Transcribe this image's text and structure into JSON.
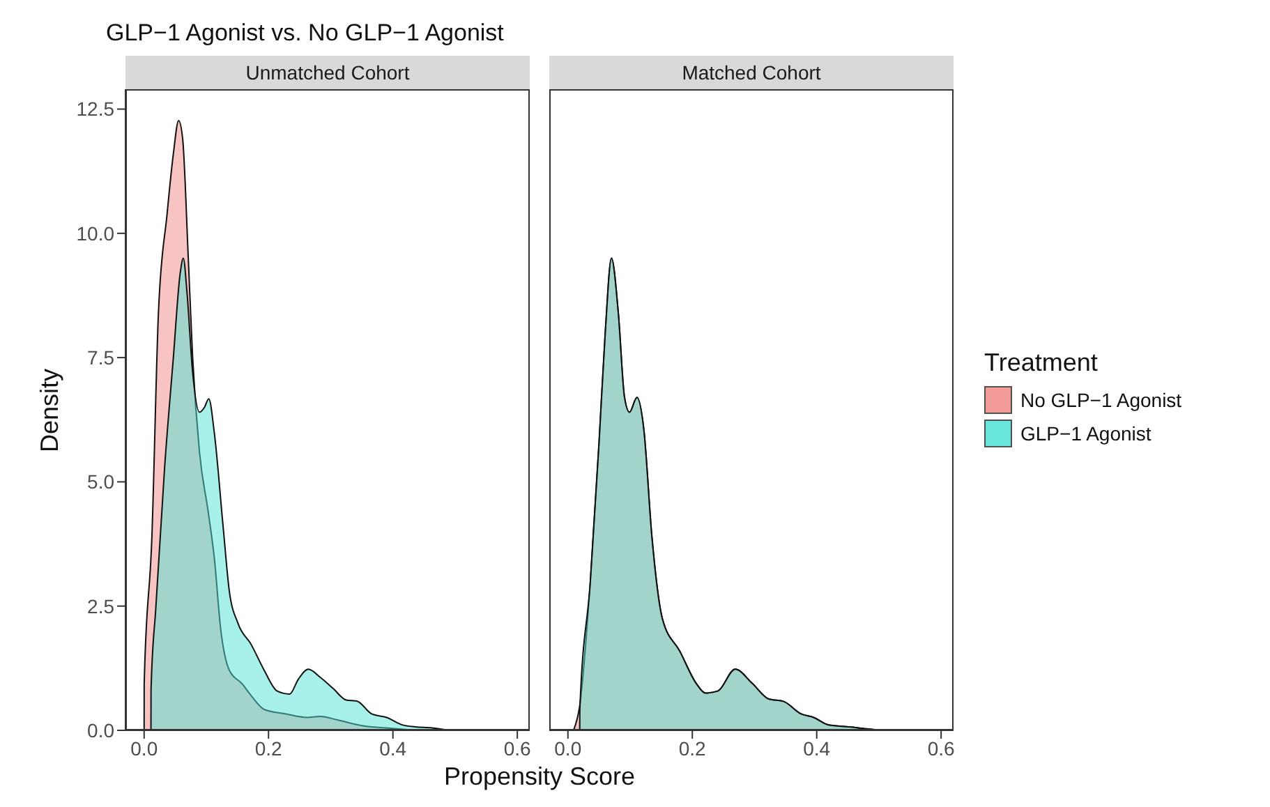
{
  "chart_data": [
    {
      "type": "area",
      "title": "GLP−1 Agonist vs. No GLP−1 Agonist",
      "subtitle": "Unmatched Cohort",
      "xlabel": "Propensity Score",
      "ylabel": "Density",
      "xlim": [
        -0.03,
        0.62
      ],
      "ylim": [
        0,
        12.9
      ],
      "xticks": [
        {
          "value": 0,
          "label": "0.0"
        },
        {
          "value": 0.2,
          "label": "0.2"
        },
        {
          "value": 0.4,
          "label": "0.4"
        },
        {
          "value": 0.6,
          "label": "0.6"
        }
      ],
      "yticks": [
        {
          "value": 0,
          "label": "0.0"
        },
        {
          "value": 2.5,
          "label": "2.5"
        },
        {
          "value": 5,
          "label": "5.0"
        },
        {
          "value": 7.5,
          "label": "7.5"
        },
        {
          "value": 10,
          "label": "10.0"
        },
        {
          "value": 12.5,
          "label": "12.5"
        }
      ],
      "grid": false,
      "legend": false,
      "series": [
        {
          "color": "#f08a88",
          "x": [
            0.0,
            0.0001,
            0.0125,
            0.023,
            0.037,
            0.047,
            0.0555,
            0.062,
            0.071,
            0.078,
            0.089,
            0.103,
            0.113,
            0.123,
            0.137,
            0.158,
            0.172,
            0.193,
            0.228,
            0.262,
            0.283,
            0.311,
            0.352,
            0.4,
            0.436
          ],
          "values": [
            0,
            0.93,
            3.9,
            8.4,
            10.4,
            11.6,
            12.27,
            11.9,
            9.5,
            7.5,
            5.6,
            4.4,
            3.45,
            2.05,
            1.21,
            0.93,
            0.7,
            0.42,
            0.33,
            0.26,
            0.28,
            0.21,
            0.09,
            0.04,
            0
          ]
        },
        {
          "color": "#4fe3d6",
          "x": [
            0.011,
            0.0111,
            0.019,
            0.033,
            0.047,
            0.058,
            0.063,
            0.069,
            0.078,
            0.089,
            0.097,
            0.104,
            0.113,
            0.127,
            0.137,
            0.151,
            0.172,
            0.193,
            0.214,
            0.234,
            0.248,
            0.264,
            0.283,
            0.304,
            0.325,
            0.342,
            0.366,
            0.39,
            0.415,
            0.436,
            0.463,
            0.49
          ],
          "values": [
            0,
            0.8,
            2.5,
            5.3,
            7.5,
            9.2,
            9.5,
            8.8,
            7.2,
            6.4,
            6.5,
            6.67,
            5.97,
            4.1,
            2.8,
            2.15,
            1.73,
            1.21,
            0.79,
            0.73,
            1.03,
            1.23,
            1.07,
            0.84,
            0.61,
            0.59,
            0.33,
            0.26,
            0.11,
            0.07,
            0.05,
            0
          ]
        }
      ]
    },
    {
      "type": "area",
      "subtitle": "Matched Cohort",
      "xlim": [
        -0.03,
        0.62
      ],
      "ylim": [
        0,
        12.9
      ],
      "xticks": [
        {
          "value": 0,
          "label": "0.0"
        },
        {
          "value": 0.2,
          "label": "0.2"
        },
        {
          "value": 0.4,
          "label": "0.4"
        },
        {
          "value": 0.6,
          "label": "0.6"
        }
      ],
      "tick_labels": "x",
      "grid": false,
      "legend": "right",
      "legend_title": "Treatment",
      "series": [
        {
          "name": "No GLP−1 Agonist",
          "color": "#f08a88",
          "x": [
            0.009,
            0.019,
            0.036,
            0.05,
            0.06,
            0.07,
            0.081,
            0.091,
            0.099,
            0.111,
            0.122,
            0.135,
            0.152,
            0.18,
            0.207,
            0.221,
            0.241,
            0.269,
            0.296,
            0.323,
            0.347,
            0.375,
            0.395,
            0.419,
            0.453,
            0.48,
            0.504
          ],
          "values": [
            0,
            0.5,
            2.99,
            5.78,
            8.0,
            9.5,
            8.4,
            6.7,
            6.4,
            6.7,
            6.06,
            3.9,
            2.24,
            1.59,
            0.93,
            0.75,
            0.79,
            1.23,
            0.95,
            0.63,
            0.58,
            0.33,
            0.26,
            0.11,
            0.07,
            0.03,
            0
          ]
        },
        {
          "name": "GLP−1 Agonist",
          "color": "#4fe3d6",
          "x": [
            0.019,
            0.0191,
            0.036,
            0.05,
            0.06,
            0.07,
            0.081,
            0.091,
            0.099,
            0.111,
            0.122,
            0.135,
            0.152,
            0.18,
            0.207,
            0.221,
            0.241,
            0.269,
            0.296,
            0.323,
            0.347,
            0.375,
            0.395,
            0.419,
            0.453,
            0.48,
            0.504
          ],
          "values": [
            0,
            0.4,
            2.99,
            5.78,
            8.0,
            9.5,
            8.4,
            6.7,
            6.4,
            6.7,
            6.06,
            3.9,
            2.24,
            1.59,
            0.93,
            0.75,
            0.79,
            1.23,
            0.95,
            0.63,
            0.58,
            0.33,
            0.26,
            0.11,
            0.07,
            0.03,
            0
          ]
        }
      ]
    }
  ]
}
